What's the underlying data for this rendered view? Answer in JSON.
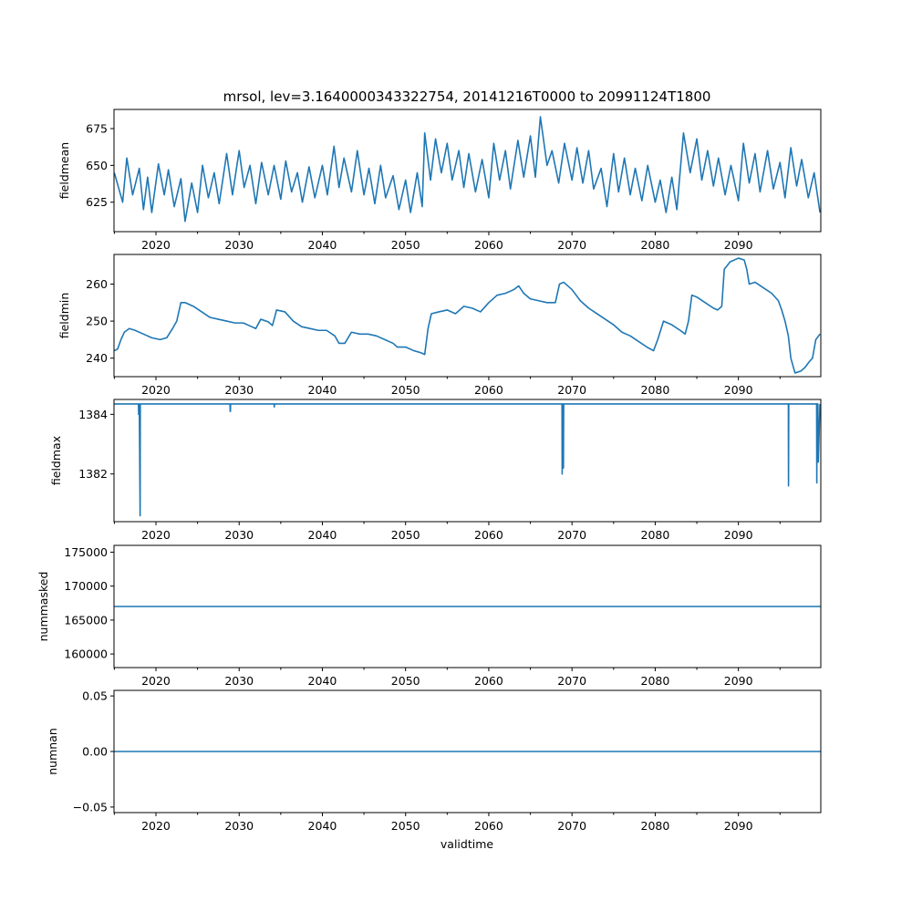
{
  "figure": {
    "title": "mrsol, lev=3.1640000343322754, 20141216T0000 to 20991124T1800",
    "xlabel": "validtime"
  },
  "chart_data": [
    {
      "type": "line",
      "ylabel": "fieldmean",
      "xlim": [
        2014.96,
        2099.9
      ],
      "ylim": [
        605,
        688
      ],
      "xticks": [
        2020,
        2030,
        2040,
        2050,
        2060,
        2070,
        2080,
        2090
      ],
      "xticklabels": [
        "2020",
        "2030",
        "2040",
        "2050",
        "2060",
        "2070",
        "2080",
        "2090"
      ],
      "yticks": [
        625,
        650,
        675
      ],
      "yticklabels": [
        "625",
        "650",
        "675"
      ],
      "x": [
        2015.0,
        2016.0,
        2016.5,
        2017.2,
        2018.0,
        2018.5,
        2019.0,
        2019.5,
        2020.3,
        2021.0,
        2021.5,
        2022.2,
        2023.0,
        2023.5,
        2024.3,
        2025.0,
        2025.6,
        2026.3,
        2027.0,
        2027.6,
        2028.5,
        2029.2,
        2030.0,
        2030.6,
        2031.3,
        2032.0,
        2032.7,
        2033.5,
        2034.2,
        2035.0,
        2035.6,
        2036.3,
        2037.0,
        2037.6,
        2038.4,
        2039.1,
        2040.0,
        2040.6,
        2041.4,
        2042.0,
        2042.6,
        2043.5,
        2044.2,
        2045.0,
        2045.6,
        2046.3,
        2047.0,
        2047.6,
        2048.5,
        2049.2,
        2050.0,
        2050.6,
        2051.4,
        2052.0,
        2052.3,
        2053.0,
        2053.6,
        2054.3,
        2055.0,
        2055.6,
        2056.4,
        2057.0,
        2057.6,
        2058.4,
        2059.2,
        2060.0,
        2060.6,
        2061.3,
        2062.0,
        2062.6,
        2063.5,
        2064.2,
        2065.0,
        2065.6,
        2066.2,
        2067.0,
        2067.6,
        2068.4,
        2069.1,
        2070.0,
        2070.6,
        2071.3,
        2072.0,
        2072.6,
        2073.5,
        2074.2,
        2075.0,
        2075.6,
        2076.3,
        2077.0,
        2077.6,
        2078.4,
        2079.1,
        2080.0,
        2080.6,
        2081.3,
        2082.0,
        2082.6,
        2083.4,
        2084.2,
        2085.0,
        2085.6,
        2086.3,
        2087.0,
        2087.6,
        2088.4,
        2089.1,
        2090.0,
        2090.6,
        2091.3,
        2092.0,
        2092.6,
        2093.5,
        2094.2,
        2095.0,
        2095.6,
        2096.3,
        2097.0,
        2097.6,
        2098.4,
        2099.1,
        2099.8
      ],
      "y": [
        645,
        625,
        655,
        630,
        648,
        620,
        642,
        618,
        651,
        630,
        647,
        622,
        641,
        612,
        638,
        618,
        650,
        628,
        645,
        624,
        658,
        630,
        660,
        635,
        650,
        624,
        652,
        630,
        650,
        627,
        653,
        632,
        645,
        625,
        649,
        628,
        650,
        630,
        663,
        635,
        655,
        632,
        660,
        630,
        648,
        624,
        650,
        628,
        643,
        620,
        640,
        618,
        645,
        622,
        672,
        640,
        668,
        645,
        665,
        640,
        660,
        635,
        658,
        632,
        654,
        628,
        665,
        640,
        660,
        634,
        667,
        642,
        670,
        642,
        683,
        650,
        660,
        638,
        665,
        640,
        662,
        638,
        660,
        634,
        648,
        622,
        658,
        632,
        655,
        630,
        648,
        626,
        650,
        625,
        640,
        618,
        642,
        620,
        672,
        645,
        668,
        640,
        660,
        636,
        655,
        630,
        650,
        626,
        665,
        638,
        658,
        632,
        660,
        634,
        652,
        628,
        662,
        636,
        654,
        628,
        645,
        618
      ]
    },
    {
      "type": "line",
      "ylabel": "fieldmin",
      "xlim": [
        2014.96,
        2099.9
      ],
      "ylim": [
        235,
        268
      ],
      "xticks": [
        2020,
        2030,
        2040,
        2050,
        2060,
        2070,
        2080,
        2090
      ],
      "xticklabels": [
        "2020",
        "2030",
        "2040",
        "2050",
        "2060",
        "2070",
        "2080",
        "2090"
      ],
      "yticks": [
        240,
        250,
        260
      ],
      "yticklabels": [
        "240",
        "250",
        "260"
      ],
      "x": [
        2015.0,
        2015.4,
        2015.8,
        2016.2,
        2016.8,
        2017.5,
        2018.5,
        2019.5,
        2020.5,
        2021.3,
        2022.0,
        2022.5,
        2023.0,
        2023.5,
        2024.5,
        2025.5,
        2026.5,
        2027.5,
        2028.5,
        2029.5,
        2030.5,
        2031.5,
        2032.0,
        2032.6,
        2033.5,
        2034.0,
        2034.5,
        2035.5,
        2036.5,
        2037.5,
        2038.5,
        2039.5,
        2040.5,
        2041.5,
        2042.0,
        2042.7,
        2043.5,
        2044.5,
        2045.5,
        2046.5,
        2047.5,
        2048.5,
        2049.0,
        2050.0,
        2051.0,
        2051.8,
        2052.3,
        2052.7,
        2053.1,
        2054.0,
        2055.0,
        2056.0,
        2057.0,
        2058.0,
        2059.0,
        2060.0,
        2061.0,
        2062.0,
        2063.0,
        2063.6,
        2064.2,
        2065.0,
        2066.0,
        2067.0,
        2068.0,
        2068.5,
        2069.0,
        2070.0,
        2071.0,
        2072.0,
        2073.0,
        2074.0,
        2075.0,
        2076.0,
        2077.0,
        2078.0,
        2079.0,
        2079.8,
        2080.3,
        2081.0,
        2082.0,
        2083.0,
        2083.6,
        2084.0,
        2084.4,
        2085.0,
        2086.0,
        2087.0,
        2087.5,
        2088.0,
        2088.3,
        2089.0,
        2090.0,
        2090.7,
        2091.0,
        2091.3,
        2092.0,
        2093.0,
        2094.0,
        2094.8,
        2095.2,
        2095.6,
        2096.0,
        2096.3,
        2096.8,
        2097.5,
        2098.0,
        2098.5,
        2098.9,
        2099.3,
        2099.8
      ],
      "y": [
        242,
        242.5,
        245,
        247,
        248,
        247.5,
        246.5,
        245.5,
        245,
        245.5,
        248,
        250,
        255,
        255,
        254,
        252.5,
        251,
        250.5,
        250,
        249.5,
        249.5,
        248.5,
        248,
        250.5,
        249.8,
        248.8,
        253,
        252.5,
        250,
        248.5,
        248,
        247.5,
        247.5,
        246,
        244,
        244,
        247,
        246.5,
        246.5,
        246,
        245,
        244,
        243,
        243,
        242,
        241.5,
        241,
        248,
        252,
        252.5,
        253,
        252,
        254,
        253.5,
        252.5,
        255,
        257,
        257.5,
        258.5,
        259.5,
        257.5,
        256,
        255.5,
        255,
        255,
        260,
        260.5,
        258.5,
        255.5,
        253.5,
        252,
        250.5,
        249,
        247,
        246,
        244.5,
        243,
        242,
        245,
        250,
        249,
        247.5,
        246.5,
        250,
        257,
        256.5,
        255,
        253.5,
        253,
        254,
        264,
        266,
        267,
        266.5,
        264,
        260,
        260.5,
        259,
        257.5,
        255.5,
        253,
        250,
        246,
        240,
        236,
        236.5,
        237.5,
        239,
        240,
        245,
        246.5
      ]
    },
    {
      "type": "line",
      "ylabel": "fieldmax",
      "xlim": [
        2014.96,
        2099.9
      ],
      "ylim": [
        1380.4,
        1384.5
      ],
      "xticks": [
        2020,
        2030,
        2040,
        2050,
        2060,
        2070,
        2080,
        2090
      ],
      "xticklabels": [
        "2020",
        "2030",
        "2040",
        "2050",
        "2060",
        "2070",
        "2080",
        "2090"
      ],
      "yticks": [
        1382,
        1384
      ],
      "yticklabels": [
        "1382",
        "1384"
      ],
      "x": [
        2015.0,
        2017.9,
        2017.92,
        2017.95,
        2018.0,
        2018.1,
        2018.12,
        2018.15,
        2018.2,
        2028.9,
        2028.92,
        2028.95,
        2028.97,
        2034.2,
        2034.22,
        2034.25,
        2068.8,
        2068.82,
        2068.85,
        2068.95,
        2068.97,
        2069.0,
        2096.0,
        2096.02,
        2096.05,
        2096.15,
        2096.17,
        2096.2,
        2099.4,
        2099.42,
        2099.45,
        2099.55,
        2099.6,
        2099.8
      ],
      "y": [
        1384.35,
        1384.35,
        1384.0,
        1384.35,
        1384.35,
        1380.6,
        1384.35,
        1384.35,
        1384.35,
        1384.35,
        1384.1,
        1384.1,
        1384.35,
        1384.35,
        1384.25,
        1384.35,
        1384.35,
        1382.0,
        1384.35,
        1384.35,
        1382.2,
        1384.35,
        1384.35,
        1381.6,
        1384.35,
        1384.35,
        1384.35,
        1384.35,
        1384.35,
        1381.7,
        1384.35,
        1384.35,
        1382.4,
        1384.35
      ]
    },
    {
      "type": "line",
      "ylabel": "nummasked",
      "xlim": [
        2014.96,
        2099.9
      ],
      "ylim": [
        158000,
        176000
      ],
      "xticks": [
        2020,
        2030,
        2040,
        2050,
        2060,
        2070,
        2080,
        2090
      ],
      "xticklabels": [
        "2020",
        "2030",
        "2040",
        "2050",
        "2060",
        "2070",
        "2080",
        "2090"
      ],
      "yticks": [
        160000,
        165000,
        170000,
        175000
      ],
      "yticklabels": [
        "160000",
        "165000",
        "170000",
        "175000"
      ],
      "x": [
        2015.0,
        2099.9
      ],
      "y": [
        167000,
        167000
      ]
    },
    {
      "type": "line",
      "ylabel": "numnan",
      "xlim": [
        2014.96,
        2099.9
      ],
      "ylim": [
        -0.055,
        0.055
      ],
      "xticks": [
        2020,
        2030,
        2040,
        2050,
        2060,
        2070,
        2080,
        2090
      ],
      "xticklabels": [
        "2020",
        "2030",
        "2040",
        "2050",
        "2060",
        "2070",
        "2080",
        "2090"
      ],
      "yticks": [
        -0.05,
        0.0,
        0.05
      ],
      "yticklabels": [
        "−0.05",
        "0.00",
        "0.05"
      ],
      "x": [
        2015.0,
        2099.9
      ],
      "y": [
        0,
        0
      ]
    }
  ]
}
